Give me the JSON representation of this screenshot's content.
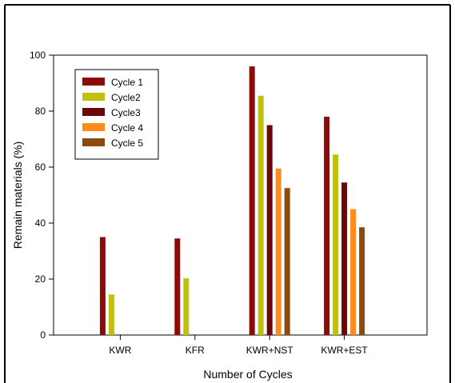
{
  "chart_data": {
    "type": "bar",
    "title": "",
    "xlabel": "Number of Cycles",
    "ylabel": "Remain materials (%)",
    "ylim": [
      0,
      100
    ],
    "yticks": [
      0,
      20,
      40,
      60,
      80,
      100
    ],
    "grid": false,
    "legend_position": "top-left",
    "categories": [
      "KWR",
      "KFR",
      "KWR+NST",
      "KWR+EST"
    ],
    "series": [
      {
        "name": "Cycle 1",
        "color": "#8b0a0a",
        "values": [
          35,
          34.5,
          96,
          78
        ]
      },
      {
        "name": "Cycle2",
        "color": "#bfc10d",
        "values": [
          14.5,
          20.3,
          85.5,
          64.5
        ]
      },
      {
        "name": "Cycle3",
        "color": "#6a0808",
        "values": [
          null,
          null,
          75,
          54.5
        ]
      },
      {
        "name": "Cycle 4",
        "color": "#ff8c1a",
        "values": [
          null,
          null,
          59.5,
          45
        ]
      },
      {
        "name": "Cycle 5",
        "color": "#8a4a10",
        "values": [
          null,
          null,
          52.5,
          38.5
        ]
      }
    ]
  }
}
